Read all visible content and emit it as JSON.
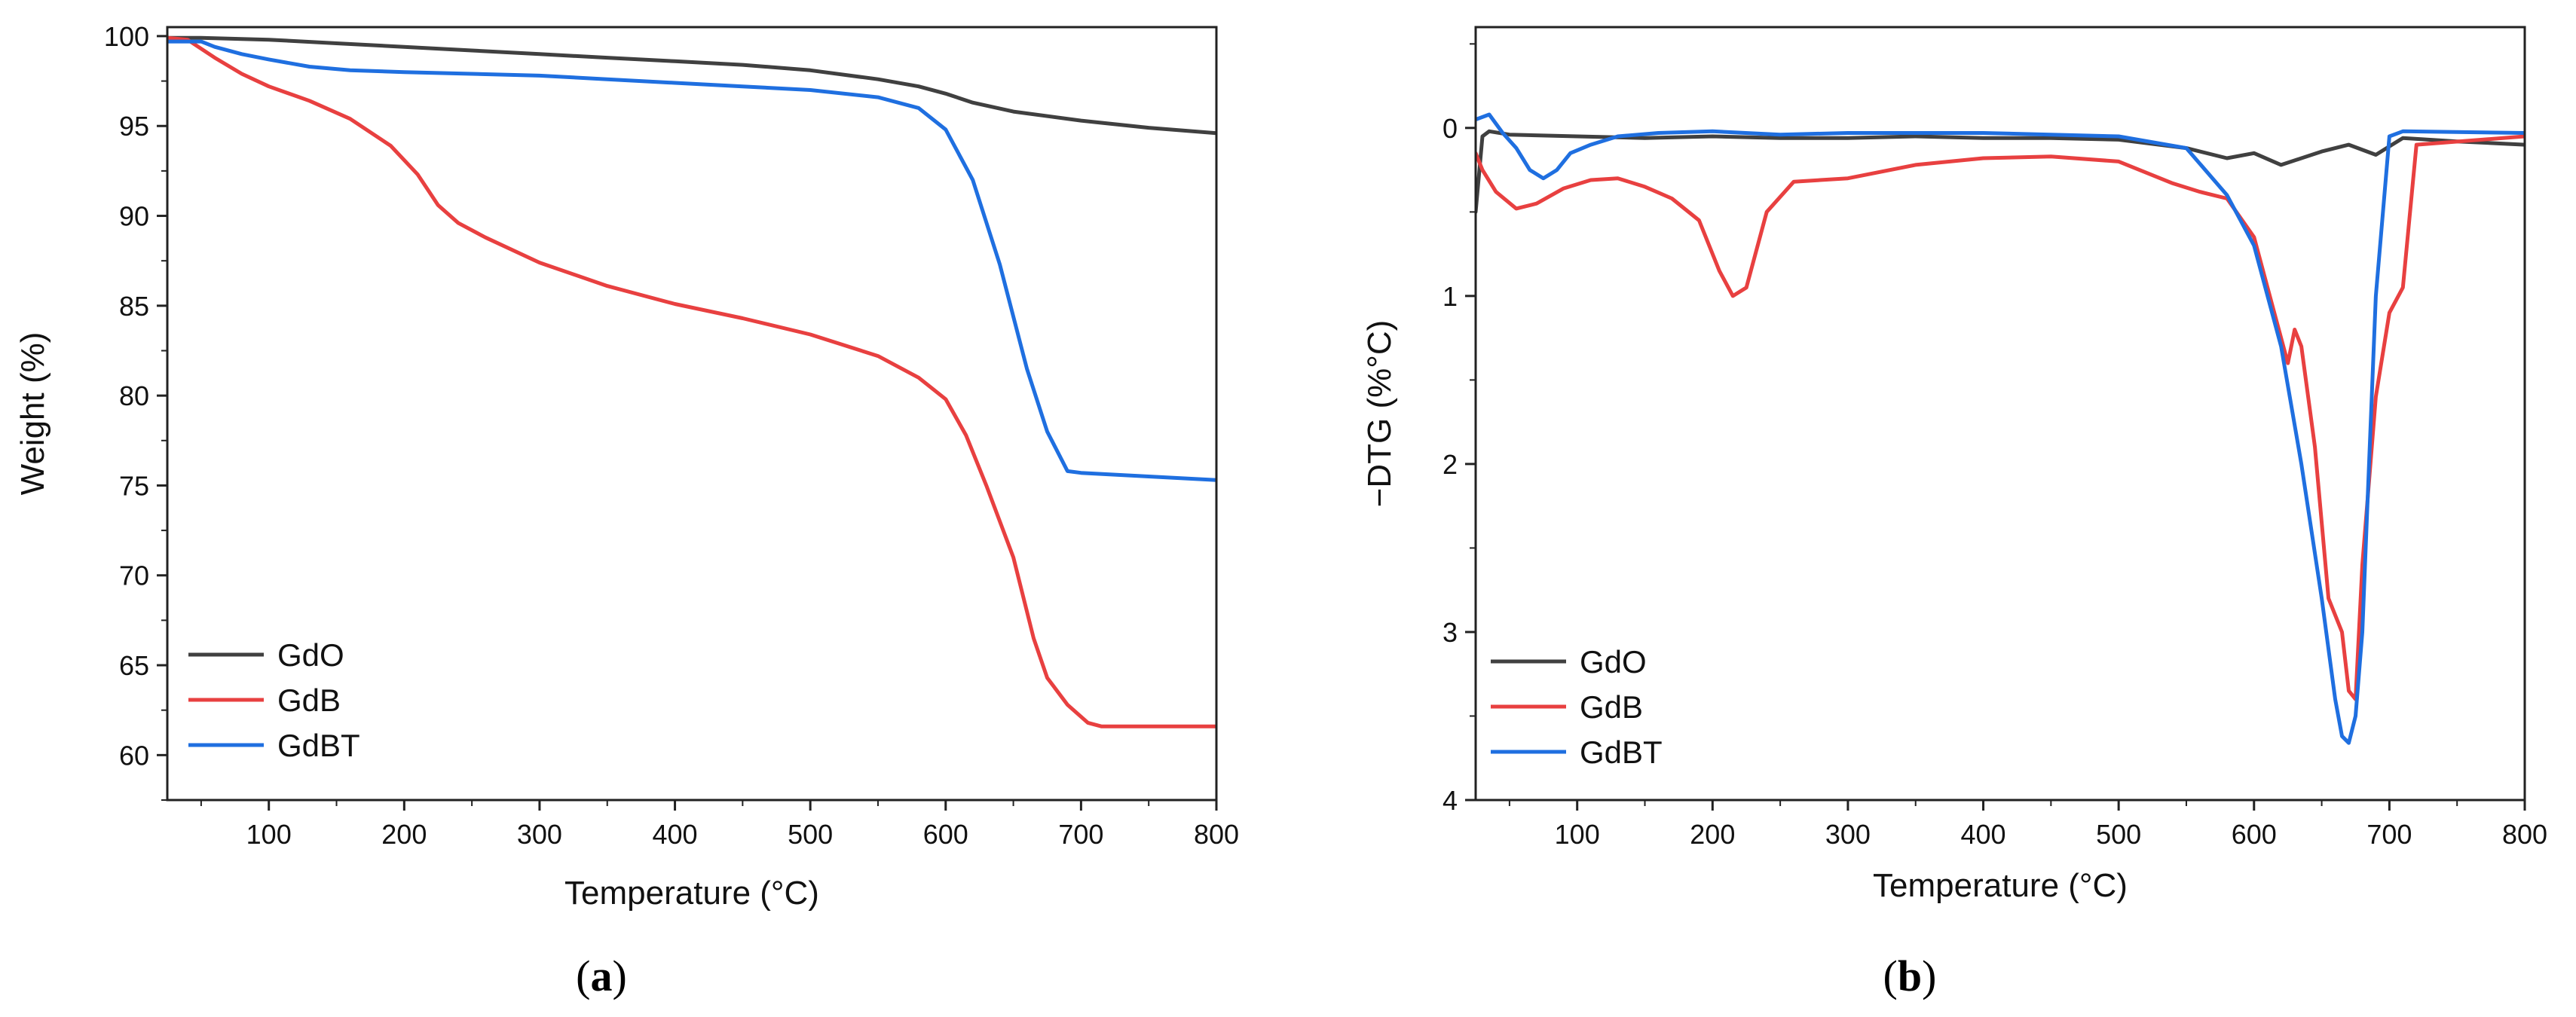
{
  "figure": {
    "captions": [
      {
        "open": "(",
        "letter": "a",
        "close": ")"
      },
      {
        "open": "(",
        "letter": "b",
        "close": ")"
      }
    ]
  },
  "chart_data": [
    {
      "id": "a",
      "type": "line",
      "xlabel": "Temperature (°C)",
      "ylabel": "Weight (%)",
      "xlim": [
        25,
        800
      ],
      "ylim": [
        57.5,
        100.5
      ],
      "y_inverted": false,
      "xticks": [
        100,
        200,
        300,
        400,
        500,
        600,
        700,
        800
      ],
      "yticks": [
        60,
        65,
        70,
        75,
        80,
        85,
        90,
        95,
        100
      ],
      "legend_position": "bottom-left",
      "series": [
        {
          "name": "GdO",
          "color": "#404040",
          "x": [
            25,
            50,
            100,
            150,
            200,
            250,
            300,
            350,
            400,
            450,
            500,
            550,
            580,
            600,
            620,
            650,
            700,
            750,
            800
          ],
          "y": [
            99.9,
            99.9,
            99.8,
            99.6,
            99.4,
            99.2,
            99.0,
            98.8,
            98.6,
            98.4,
            98.1,
            97.6,
            97.2,
            96.8,
            96.3,
            95.8,
            95.3,
            94.9,
            94.6
          ]
        },
        {
          "name": "GdB",
          "color": "#e84040",
          "x": [
            25,
            40,
            60,
            80,
            100,
            130,
            160,
            190,
            210,
            225,
            240,
            260,
            300,
            350,
            400,
            450,
            500,
            550,
            580,
            600,
            615,
            630,
            650,
            665,
            675,
            690,
            705,
            715,
            800
          ],
          "y": [
            99.9,
            99.8,
            98.8,
            97.9,
            97.2,
            96.4,
            95.4,
            93.9,
            92.3,
            90.6,
            89.6,
            88.8,
            87.4,
            86.1,
            85.1,
            84.3,
            83.4,
            82.2,
            81.0,
            79.8,
            77.8,
            75.0,
            71.0,
            66.5,
            64.3,
            62.8,
            61.8,
            61.6,
            61.6
          ]
        },
        {
          "name": "GdBT",
          "color": "#1f6fe0",
          "x": [
            25,
            50,
            60,
            80,
            100,
            130,
            160,
            200,
            250,
            300,
            350,
            400,
            450,
            500,
            550,
            580,
            600,
            620,
            640,
            660,
            675,
            690,
            700,
            750,
            800
          ],
          "y": [
            99.7,
            99.7,
            99.4,
            99.0,
            98.7,
            98.3,
            98.1,
            98.0,
            97.9,
            97.8,
            97.6,
            97.4,
            97.2,
            97.0,
            96.6,
            96.0,
            94.8,
            92.0,
            87.3,
            81.5,
            78.0,
            75.8,
            75.7,
            75.5,
            75.3
          ]
        }
      ]
    },
    {
      "id": "b",
      "type": "line",
      "xlabel": "Temperature (°C)",
      "ylabel": "−DTG (%°C)",
      "xlim": [
        25,
        800
      ],
      "ylim": [
        -0.6,
        4
      ],
      "y_inverted": true,
      "xticks": [
        100,
        200,
        300,
        400,
        500,
        600,
        700,
        800
      ],
      "yticks": [
        0,
        1,
        2,
        3,
        4
      ],
      "legend_position": "bottom-left",
      "series": [
        {
          "name": "GdO",
          "color": "#404040",
          "x": [
            25,
            30,
            35,
            50,
            100,
            150,
            200,
            250,
            300,
            350,
            400,
            450,
            500,
            550,
            580,
            600,
            620,
            650,
            670,
            690,
            710,
            750,
            800
          ],
          "y": [
            0.5,
            0.05,
            0.02,
            0.04,
            0.05,
            0.06,
            0.05,
            0.06,
            0.06,
            0.05,
            0.06,
            0.06,
            0.07,
            0.12,
            0.18,
            0.15,
            0.22,
            0.14,
            0.1,
            0.16,
            0.06,
            0.08,
            0.1
          ]
        },
        {
          "name": "GdB",
          "color": "#e84040",
          "x": [
            25,
            30,
            40,
            55,
            70,
            90,
            110,
            130,
            150,
            170,
            190,
            205,
            215,
            225,
            240,
            260,
            300,
            350,
            400,
            450,
            500,
            540,
            560,
            580,
            600,
            615,
            625,
            630,
            635,
            645,
            655,
            665,
            670,
            675,
            680,
            690,
            700,
            710,
            720,
            800
          ],
          "y": [
            0.15,
            0.25,
            0.38,
            0.48,
            0.45,
            0.36,
            0.31,
            0.3,
            0.35,
            0.42,
            0.55,
            0.85,
            1.0,
            0.95,
            0.5,
            0.32,
            0.3,
            0.22,
            0.18,
            0.17,
            0.2,
            0.33,
            0.38,
            0.42,
            0.65,
            1.1,
            1.4,
            1.2,
            1.3,
            1.9,
            2.8,
            3.0,
            3.35,
            3.4,
            2.6,
            1.6,
            1.1,
            0.95,
            0.1,
            0.05
          ]
        },
        {
          "name": "GdBT",
          "color": "#1f6fe0",
          "x": [
            25,
            35,
            45,
            55,
            65,
            75,
            85,
            95,
            110,
            130,
            160,
            200,
            250,
            300,
            400,
            500,
            550,
            580,
            600,
            620,
            635,
            650,
            660,
            665,
            670,
            675,
            680,
            685,
            690,
            700,
            710,
            800
          ],
          "y": [
            -0.05,
            -0.08,
            0.03,
            0.12,
            0.25,
            0.3,
            0.25,
            0.15,
            0.1,
            0.05,
            0.03,
            0.02,
            0.04,
            0.03,
            0.03,
            0.05,
            0.12,
            0.4,
            0.7,
            1.3,
            2.0,
            2.8,
            3.4,
            3.62,
            3.66,
            3.5,
            3.0,
            2.0,
            1.0,
            0.05,
            0.02,
            0.03
          ]
        }
      ]
    }
  ]
}
